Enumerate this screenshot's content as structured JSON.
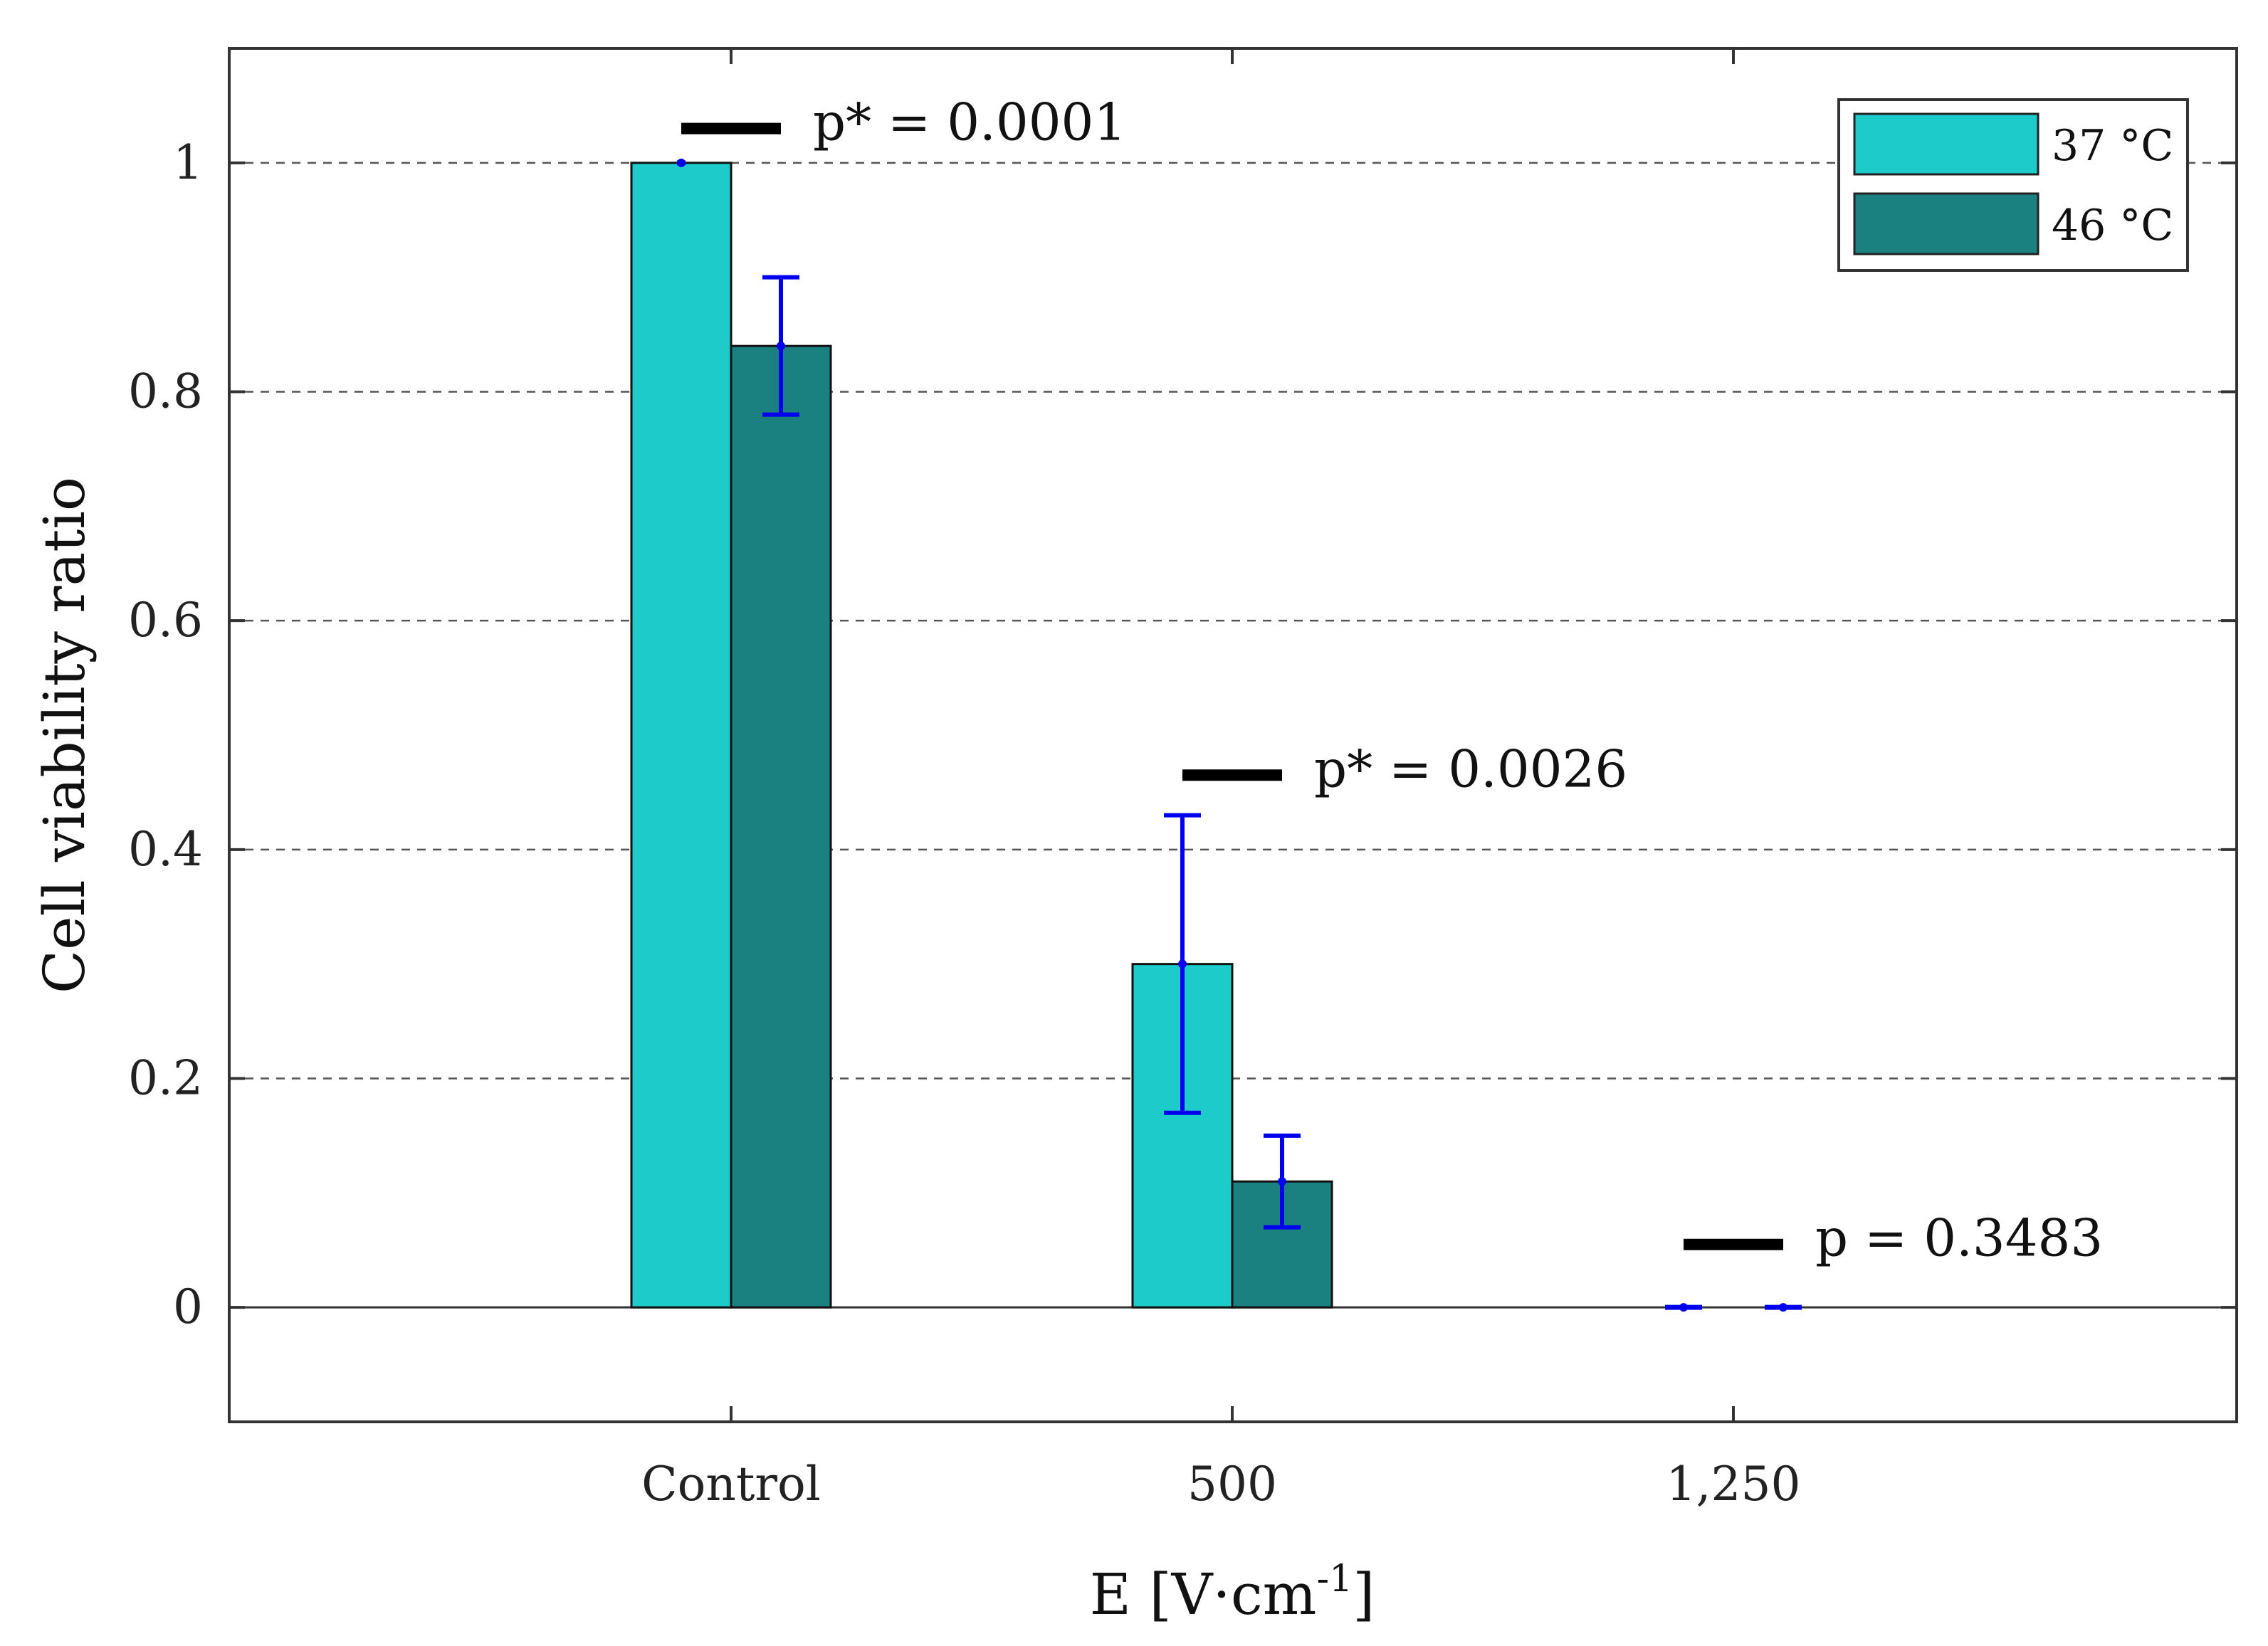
{
  "chart_data": {
    "type": "bar",
    "title": "",
    "xlabel": "E [V·cm",
    "xlabel_superscript": "-1",
    "xlabel_suffix": "]",
    "ylabel": "Cell viability ratio",
    "ylim": [
      -0.1,
      1.1
    ],
    "yticks": [
      0,
      0.2,
      0.4,
      0.6,
      0.8,
      1
    ],
    "ytick_labels": [
      "0",
      "0.2",
      "0.4",
      "0.6",
      "0.8",
      "1"
    ],
    "grid": "horizontal dashed",
    "categories": [
      "Control",
      "500",
      "1,250"
    ],
    "series": [
      {
        "name": "37 °C",
        "color": "#1ecbcb",
        "values": [
          1.0,
          0.3,
          0.0
        ],
        "errors": [
          0.0,
          0.13,
          0.0
        ]
      },
      {
        "name": "46 °C",
        "color": "#1a8080",
        "values": [
          0.84,
          0.11,
          0.0
        ],
        "errors": [
          0.06,
          0.04,
          0.0
        ]
      }
    ],
    "error_bar_color": "#0000ee",
    "legend": {
      "position": "top-right",
      "entries": [
        "37 °C",
        "46 °C"
      ]
    },
    "annotations": [
      {
        "text": "p* = 0.0001",
        "category": "Control",
        "y": 1.03
      },
      {
        "text": "p* = 0.0026",
        "category": "500",
        "y": 0.465
      },
      {
        "text": "p = 0.3483",
        "category": "1,250",
        "y": 0.055
      }
    ]
  }
}
